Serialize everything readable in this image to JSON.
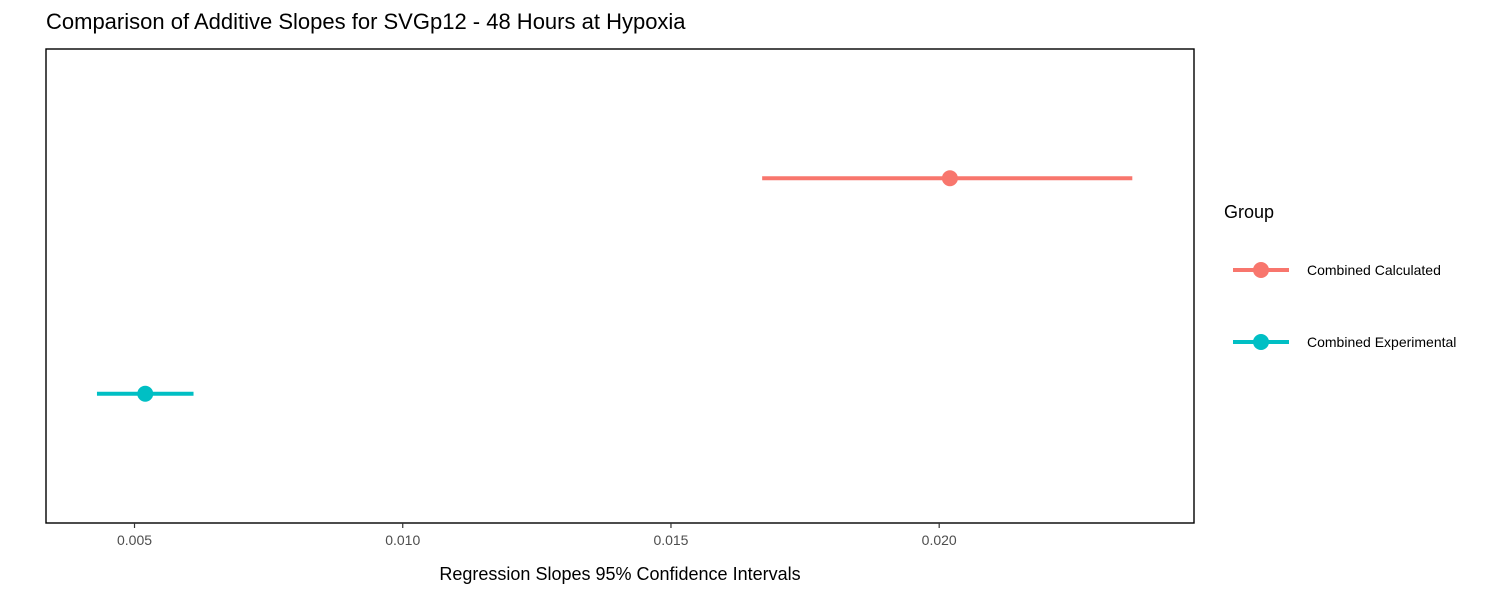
{
  "chart_data": {
    "type": "scatter",
    "title": "Comparison of Additive Slopes for SVGp12 - 48 Hours at Hypoxia",
    "xlabel": "Regression Slopes 95% Confidence Intervals",
    "ylabel": "",
    "xlim": [
      0.00335,
      0.02475
    ],
    "x_ticks": [
      0.005,
      0.01,
      0.015,
      0.02
    ],
    "x_tick_labels": [
      "0.005",
      "0.010",
      "0.015",
      "0.020"
    ],
    "grid": false,
    "legend": {
      "title": "Group",
      "position": "right"
    },
    "series": [
      {
        "name": "Combined Calculated",
        "color": "#F8766D",
        "estimate": 0.0202,
        "lower": 0.0167,
        "upper": 0.0236
      },
      {
        "name": "Combined Experimental",
        "color": "#00BFC4",
        "estimate": 0.0052,
        "lower": 0.0043,
        "upper": 0.0061
      }
    ]
  }
}
